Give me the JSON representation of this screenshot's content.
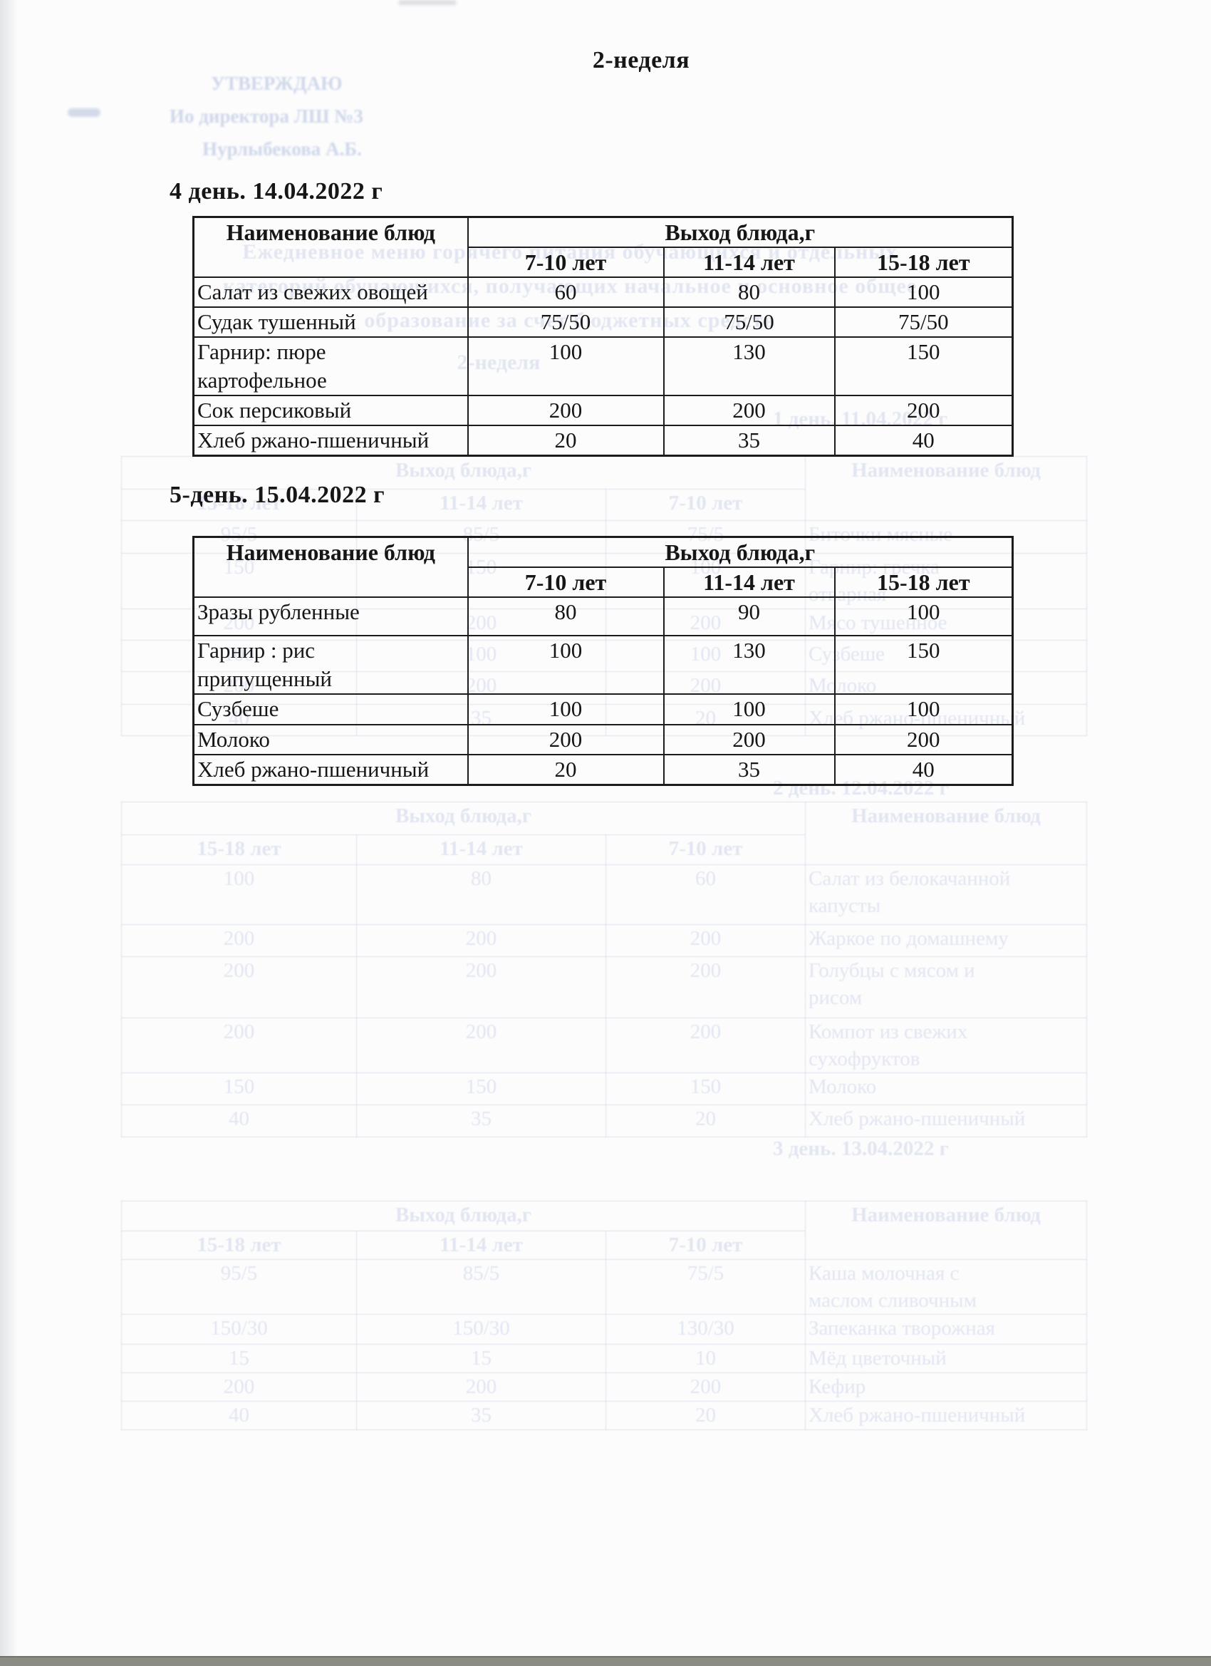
{
  "page": {
    "week_title": "2-неделя"
  },
  "colors": {
    "paper": "#fcfcfd",
    "table_line": "#1c1c1c",
    "bottom_strip": "#8b8c84",
    "ghost_text": "#e2e6f1",
    "approval_text": "#cfd7e9"
  },
  "day4": {
    "heading": "4 день. 14.04.2022 г",
    "table": {
      "name_header": "Наименование блюд",
      "output_header": "Выход блюда,г",
      "age_headers": [
        "7-10 лет",
        "11-14 лет",
        "15-18 лет"
      ],
      "rows": [
        {
          "name": "Салат из свежих овощей",
          "values": [
            "60",
            "80",
            "100"
          ]
        },
        {
          "name": "Судак  тушенный",
          "values": [
            "75/50",
            "75/50",
            "75/50"
          ]
        },
        {
          "name": "Гарнир: пюре\nкартофельное",
          "values": [
            "100",
            "130",
            "150"
          ]
        },
        {
          "name": "Сок персиковый",
          "values": [
            "200",
            "200",
            "200"
          ]
        },
        {
          "name": "Хлеб  ржано-пшеничный",
          "values": [
            "20",
            "35",
            "40"
          ]
        }
      ]
    }
  },
  "day5": {
    "heading": "5-день. 15.04.2022 г",
    "table": {
      "name_header": "Наименование блюд",
      "output_header": "Выход блюда,г",
      "age_headers": [
        "7-10 лет",
        "11-14 лет",
        "15-18 лет"
      ],
      "rows": [
        {
          "name": "Зразы рубленные",
          "values": [
            "80",
            "90",
            "100"
          ]
        },
        {
          "name": "Гарнир : рис\nприпущенный",
          "values": [
            "100",
            "130",
            "150"
          ]
        },
        {
          "name": "Сузбеше",
          "values": [
            "100",
            "100",
            "100"
          ]
        },
        {
          "name": "Молоко",
          "values": [
            "200",
            "200",
            "200"
          ]
        },
        {
          "name": "Хлеб  ржано-пшеничный",
          "values": [
            "20",
            "35",
            "40"
          ]
        }
      ]
    }
  },
  "ghost": {
    "approval": {
      "line1": "УТВЕРЖДАЮ",
      "line2": "Ио директора ЛШ №3",
      "line3": "Нурлыбекова А.Б."
    },
    "title_lines": [
      "Ежедневное меню горячего питания обучающихся и отдельных",
      "категорий обучающихся, получающих начальное и основное общее",
      "образование за счет бюджетных средств"
    ],
    "week_label": "2-неделя",
    "name_header": "Наименование блюд",
    "output_header": "Выход блюда,г",
    "age_headers_mirrored": [
      "15-18 лет",
      "11-14 лет",
      "7-10 лет"
    ],
    "day1": {
      "heading": "1 день. 11.04.2022 г",
      "rows": [
        {
          "name": "Биточки мясные",
          "values": [
            "75/5",
            "85/5",
            "95/5"
          ]
        },
        {
          "name": "Гарнир: гречка\nотварная",
          "values": [
            "100",
            "150",
            "150"
          ]
        },
        {
          "name": "Мясо тушенное",
          "values": [
            "200",
            "200",
            "200"
          ]
        },
        {
          "name": "Сузбеше",
          "values": [
            "100",
            "100",
            "100"
          ]
        },
        {
          "name": "Молоко",
          "values": [
            "200",
            "200",
            "200"
          ]
        },
        {
          "name": "Хлеб ржано-пшеничный",
          "values": [
            "20",
            "35",
            "40"
          ]
        }
      ]
    },
    "day2": {
      "heading": "2 день. 12.04.2022 г",
      "rows": [
        {
          "name": "Салат из белокачанной\nкапусты",
          "values": [
            "60",
            "80",
            "100"
          ]
        },
        {
          "name": "Жаркое по домашнему",
          "values": [
            "200",
            "200",
            "200"
          ]
        },
        {
          "name": "Голубцы с мясом и\nрисом",
          "values": [
            "200",
            "200",
            "200"
          ]
        },
        {
          "name": "Компот из свежих\nсухофруктов",
          "values": [
            "200",
            "200",
            "200"
          ]
        },
        {
          "name": "Молоко",
          "values": [
            "150",
            "150",
            "150"
          ]
        },
        {
          "name": "Хлеб ржано-пшеничный",
          "values": [
            "20",
            "35",
            "40"
          ]
        }
      ]
    },
    "day3": {
      "heading": "3 день. 13.04.2022 г",
      "rows": [
        {
          "name": "Каша молочная с\nмаслом сливочным",
          "values": [
            "75/5",
            "85/5",
            "95/5"
          ]
        },
        {
          "name": "Запеканка творожная",
          "values": [
            "130/30",
            "150/30",
            "150/30"
          ]
        },
        {
          "name": "Мёд цветочный",
          "values": [
            "10",
            "15",
            "15"
          ]
        },
        {
          "name": "Кефир",
          "values": [
            "200",
            "200",
            "200"
          ]
        },
        {
          "name": "Хлеб ржано-пшеничный",
          "values": [
            "20",
            "35",
            "40"
          ]
        }
      ]
    }
  }
}
